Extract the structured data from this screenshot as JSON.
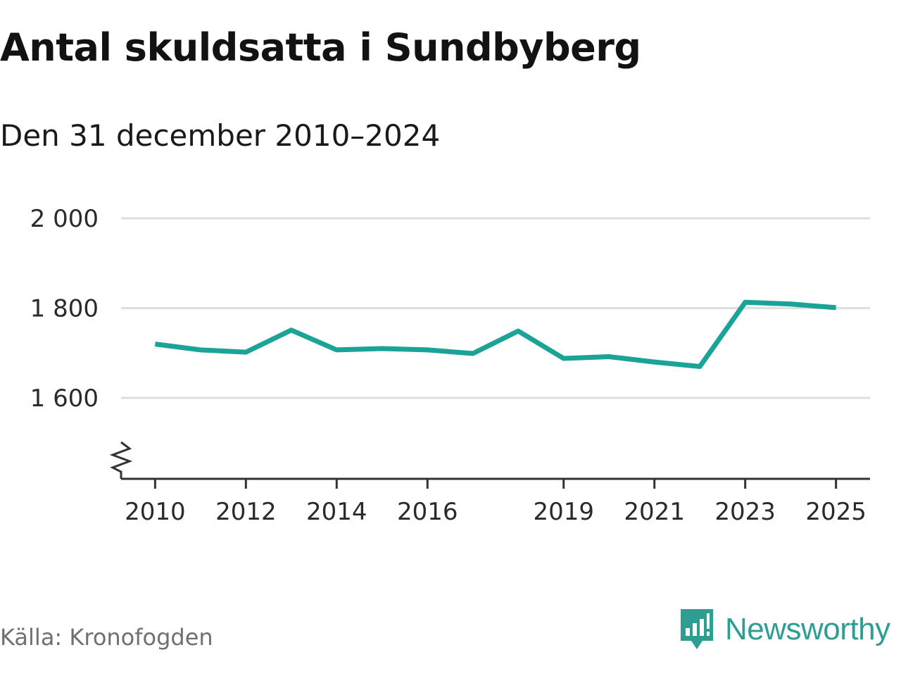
{
  "chart_data": {
    "type": "line",
    "title": "Antal skuldsatta i Sundbyberg",
    "subtitle": "Den 31 december 2010–2024",
    "xlabel": "",
    "ylabel": "",
    "x": [
      2010,
      2011,
      2012,
      2013,
      2014,
      2015,
      2016,
      2017,
      2018,
      2019,
      2020,
      2021,
      2022,
      2023,
      2024,
      2025
    ],
    "series": [
      {
        "name": "Antal skuldsatta",
        "color": "#1aa396",
        "values": [
          1720,
          1707,
          1702,
          1751,
          1707,
          1710,
          1707,
          1699,
          1749,
          1688,
          1692,
          1680,
          1670,
          1813,
          1809,
          1801
        ]
      }
    ],
    "y_ticks": [
      1600,
      1800,
      2000
    ],
    "y_tick_labels": [
      "1 600",
      "1 800",
      "2 000"
    ],
    "x_ticks": [
      2010,
      2012,
      2014,
      2016,
      2019,
      2021,
      2023,
      2025
    ],
    "x_tick_labels": [
      "2010",
      "2012",
      "2014",
      "2016",
      "2019",
      "2021",
      "2023",
      "2025"
    ],
    "ylim": [
      1420,
      2000
    ],
    "xlim": [
      2009.25,
      2025.75
    ],
    "axis_break": true,
    "grid": true,
    "legend": "none"
  },
  "source": {
    "label": "Källa: Kronofogden"
  },
  "brand": {
    "name": "Newsworthy",
    "icon": "newsworthy-logo-icon",
    "color": "#2f9e92"
  },
  "colors": {
    "grid": "#dedede",
    "axis": "#333333",
    "line": "#1aa396"
  }
}
